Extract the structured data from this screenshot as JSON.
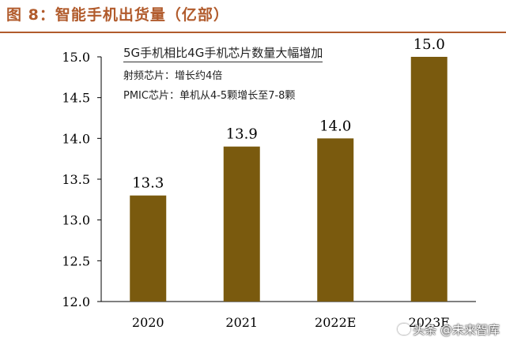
{
  "figure": {
    "title": "图 8：智能手机出货量（亿部）"
  },
  "annotation": {
    "heading": "5G手机相比4G手机芯片数量大幅增加",
    "lines": [
      "射频芯片：增长约4倍",
      "PMIC芯片：单机从4-5颗增长至7-8颗"
    ]
  },
  "watermark": {
    "text": "头条 @未来智库"
  },
  "colors": {
    "bar": "#7a5a0e",
    "title": "#b15b2c",
    "axis": "#000000"
  },
  "chart_data": {
    "type": "bar",
    "title": "",
    "xlabel": "",
    "ylabel": "",
    "categories": [
      "2020",
      "2021",
      "2022E",
      "2023E"
    ],
    "values": [
      13.3,
      13.9,
      14.0,
      15.0
    ],
    "data_labels": [
      "13.3",
      "13.9",
      "14.0",
      "15.0"
    ],
    "ylim": [
      12.0,
      15.0
    ],
    "yticks": [
      "12.0",
      "12.5",
      "13.0",
      "13.5",
      "14.0",
      "14.5",
      "15.0"
    ],
    "grid": false,
    "legend": "none"
  }
}
